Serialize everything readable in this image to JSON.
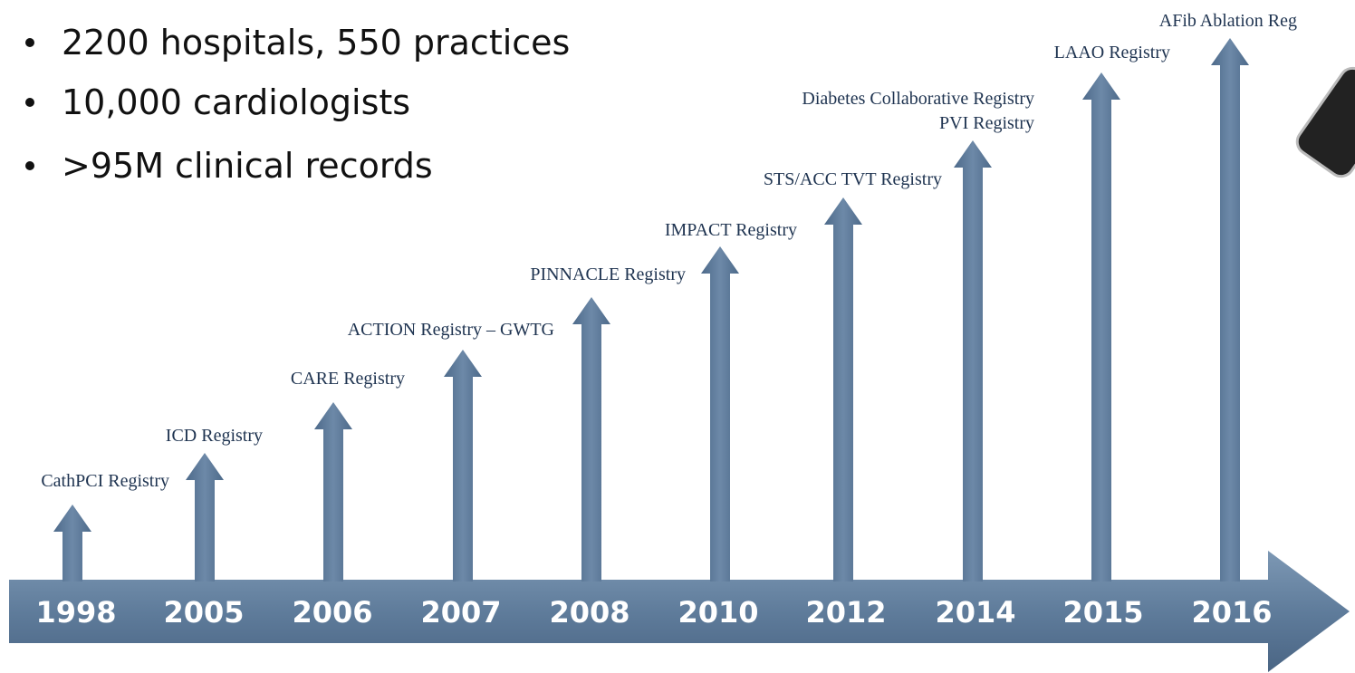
{
  "bullets": [
    "2200 hospitals, 550 practices",
    "10,000 cardiologists",
    ">95M clinical records"
  ],
  "timeline": [
    {
      "year": "1998",
      "labels": [
        "CathPCI Registry"
      ]
    },
    {
      "year": "2005",
      "labels": [
        "ICD Registry"
      ]
    },
    {
      "year": "2006",
      "labels": [
        "CARE Registry"
      ]
    },
    {
      "year": "2007",
      "labels": [
        "ACTION Registry – GWTG"
      ]
    },
    {
      "year": "2008",
      "labels": [
        "PINNACLE Registry"
      ]
    },
    {
      "year": "2010",
      "labels": [
        "IMPACT Registry"
      ]
    },
    {
      "year": "2012",
      "labels": [
        "STS/ACC TVT Registry"
      ]
    },
    {
      "year": "2014",
      "labels": [
        "Diabetes Collaborative Registry",
        "PVI Registry"
      ]
    },
    {
      "year": "2015",
      "labels": [
        "LAAO Registry"
      ]
    },
    {
      "year": "2016",
      "labels": [
        "AFib Ablation Reg"
      ]
    }
  ]
}
